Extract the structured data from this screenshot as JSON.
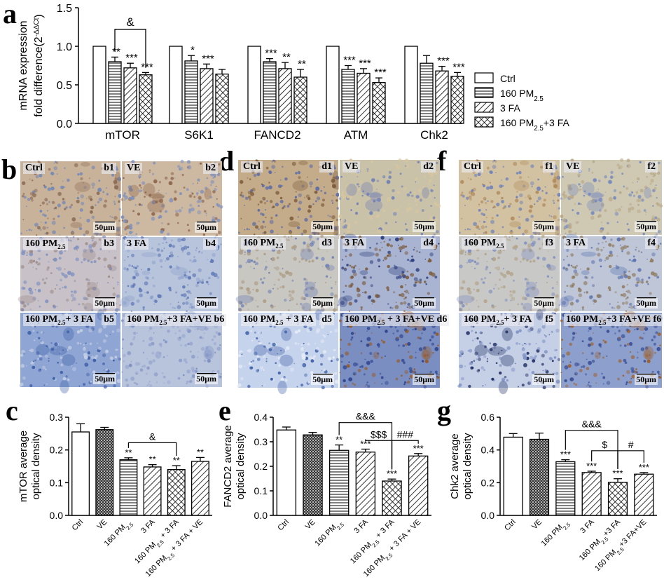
{
  "panels": {
    "a": "a",
    "b": "b",
    "c": "c",
    "d": "d",
    "e": "e",
    "f": "f",
    "g": "g"
  },
  "micro_b": [
    {
      "label": "Ctrl",
      "tag": "b1",
      "scale": "50μm",
      "colors": [
        "#c9b29a",
        "#8a6a55",
        "#6f86b8"
      ]
    },
    {
      "label": "VE",
      "tag": "b2",
      "scale": "50μm",
      "colors": [
        "#cdb8a2",
        "#8d6549",
        "#7b8fbd"
      ]
    },
    {
      "label": "160 PM2.5",
      "tag": "b3",
      "scale": "50μm",
      "colors": [
        "#c8c2c8",
        "#9c8a86",
        "#7f90c0"
      ]
    },
    {
      "label": "3 FA",
      "tag": "b4",
      "scale": "50μm",
      "colors": [
        "#b8c4dc",
        "#8da0cc",
        "#5d77b6"
      ]
    },
    {
      "label": "160 PM2.5+ 3 FA",
      "tag": "b5",
      "scale": "50μm",
      "colors": [
        "#8fa5d3",
        "#3d5ea8",
        "#c5cfe6"
      ]
    },
    {
      "label": "160 PM2.5+3 FA+VE",
      "tag": "b6",
      "scale": "50μm",
      "colors": [
        "#b8c3dc",
        "#7c90c2",
        "#9aa8d0"
      ]
    }
  ],
  "micro_d": [
    {
      "label": "Ctrl",
      "tag": "d1",
      "scale": "50μm",
      "colors": [
        "#c4ac8a",
        "#7d5c3c",
        "#5a6aa6"
      ]
    },
    {
      "label": "VE",
      "tag": "d2",
      "scale": "50μm",
      "colors": [
        "#c9c2a8",
        "#6f7fb8",
        "#d8c6a0"
      ]
    },
    {
      "label": "160 PM2.5",
      "tag": "d3",
      "scale": "50μm",
      "colors": [
        "#c9c7c2",
        "#6b7fb6",
        "#ad9c86"
      ]
    },
    {
      "label": "3 FA",
      "tag": "d4",
      "scale": "50μm",
      "colors": [
        "#a9b4d2",
        "#2b3d7c",
        "#7a5a3a"
      ]
    },
    {
      "label": "160 PM2.5 + 3 FA",
      "tag": "d5",
      "scale": "50μm",
      "colors": [
        "#c6d3ec",
        "#3c5fa8",
        "#e6ecf6"
      ]
    },
    {
      "label": "160 PM2.5 + 3 FA+VE",
      "tag": "d6",
      "scale": "50μm",
      "colors": [
        "#7a8ec2",
        "#9a5a22",
        "#2e4590"
      ]
    }
  ],
  "micro_f": [
    {
      "label": "Ctrl",
      "tag": "f1",
      "scale": "50μm",
      "colors": [
        "#d3c2a2",
        "#b08a5c",
        "#6b80ba"
      ]
    },
    {
      "label": "VE",
      "tag": "f2",
      "scale": "50μm",
      "colors": [
        "#cfc9b4",
        "#7287be",
        "#b8a888"
      ]
    },
    {
      "label": "160 PM2.5",
      "tag": "f3",
      "scale": "50μm",
      "colors": [
        "#c8c8c6",
        "#7b8cc0",
        "#b3a38a"
      ]
    },
    {
      "label": "3 FA",
      "tag": "f4",
      "scale": "50μm",
      "colors": [
        "#bec6d8",
        "#5a70ae",
        "#8e7a5e"
      ]
    },
    {
      "label": "160 PM2.5+ 3 FA",
      "tag": "f5",
      "scale": "50μm",
      "colors": [
        "#c5cfe6",
        "#1f2e62",
        "#8193c6"
      ]
    },
    {
      "label": "160 PM2.5+3 FA+VE",
      "tag": "f6",
      "scale": "50μm",
      "colors": [
        "#8d9fcc",
        "#a0602a",
        "#3a4f95"
      ]
    }
  ],
  "chart_data": [
    {
      "id": "a",
      "type": "bar",
      "ylabel_line1": "mRNA expression",
      "ylabel_line2": "fold difference(2",
      "ylabel_sup": "-ΔΔCt",
      "ylabel_close": ")",
      "ylim": [
        0,
        1.5
      ],
      "yticks": [
        "0.0",
        "0.5",
        "1.0",
        "1.5"
      ],
      "categories": [
        "mTOR",
        "S6K1",
        "FANCD2",
        "ATM",
        "Chk2"
      ],
      "series": [
        {
          "name": "Ctrl",
          "pattern": "white",
          "values": [
            1.0,
            1.0,
            1.0,
            1.0,
            1.0
          ],
          "errors": [
            0,
            0,
            0,
            0,
            0
          ],
          "stars": [
            "",
            "",
            "",
            "",
            ""
          ]
        },
        {
          "name": "160 PM2.5",
          "pattern": "hlines",
          "values": [
            0.8,
            0.81,
            0.8,
            0.7,
            0.78
          ],
          "errors": [
            0.06,
            0.07,
            0.04,
            0.05,
            0.1
          ],
          "stars": [
            "**",
            "*",
            "***",
            "***",
            ""
          ]
        },
        {
          "name": "3 FA",
          "pattern": "diag",
          "values": [
            0.72,
            0.71,
            0.71,
            0.65,
            0.68
          ],
          "errors": [
            0.06,
            0.06,
            0.08,
            0.06,
            0.06
          ],
          "stars": [
            "***",
            "***",
            "**",
            "***",
            "***"
          ]
        },
        {
          "name": "160 PM2.5+3 FA",
          "pattern": "cross",
          "values": [
            0.63,
            0.64,
            0.6,
            0.53,
            0.61
          ],
          "errors": [
            0.03,
            0.06,
            0.1,
            0.06,
            0.05
          ],
          "stars": [
            "***",
            "",
            "**",
            "***",
            "***"
          ]
        }
      ],
      "bracket": {
        "label": "&",
        "from_series": 1,
        "to_series": 3,
        "category": 0
      },
      "legend": [
        "Ctrl",
        "160 PM2.5",
        "3  FA",
        "160 PM2.5+3 FA"
      ]
    },
    {
      "id": "c",
      "type": "bar",
      "ylabel_line1": "mTOR average",
      "ylabel_line2": "optical density",
      "ylim": [
        0,
        0.3
      ],
      "yticks": [
        "0.0",
        "0.1",
        "0.2",
        "0.3"
      ],
      "categories": [
        "Ctrl",
        "VE",
        "160 PM2.5",
        "3  FA",
        "160 PM2.5 + 3 FA",
        "160 PM2.5 + 3 FA + VE"
      ],
      "values": [
        0.255,
        0.262,
        0.17,
        0.148,
        0.14,
        0.165
      ],
      "errors": [
        0.025,
        0.007,
        0.006,
        0.007,
        0.012,
        0.012
      ],
      "patterns": [
        "white",
        "dots",
        "hlines",
        "diag",
        "cross",
        "diag"
      ],
      "stars": [
        "",
        "",
        "**",
        "**",
        "**",
        "**"
      ],
      "brackets": [
        {
          "label": "&",
          "from": 2,
          "to": 4,
          "y": 0.222
        }
      ]
    },
    {
      "id": "e",
      "type": "bar",
      "ylabel_line1": "FANCD2 average",
      "ylabel_line2": "optical density",
      "ylim": [
        0,
        0.4
      ],
      "yticks": [
        "0.0",
        "0.1",
        "0.2",
        "0.3",
        "0.4"
      ],
      "categories": [
        "Ctrl",
        "VE",
        "160 PM2.5",
        "3  FA",
        "160 PM2.5 + 3 FA",
        "160 PM2.5 + 3 FA + VE"
      ],
      "values": [
        0.348,
        0.328,
        0.265,
        0.258,
        0.14,
        0.242
      ],
      "errors": [
        0.012,
        0.01,
        0.022,
        0.012,
        0.008,
        0.01
      ],
      "patterns": [
        "white",
        "dots",
        "hlines",
        "diag",
        "cross",
        "diag"
      ],
      "stars": [
        "",
        "",
        "**",
        "***",
        "***",
        "***"
      ],
      "brackets": [
        {
          "label": "&&&",
          "from": 2,
          "to": 4,
          "y": 0.378
        },
        {
          "label": "$$$",
          "from": 3,
          "to": 4,
          "y": 0.305
        },
        {
          "label": "###",
          "from": 4,
          "to": 5,
          "y": 0.305
        }
      ]
    },
    {
      "id": "g",
      "type": "bar",
      "ylabel_line1": "Chk2 average",
      "ylabel_line2": "optical density",
      "ylim": [
        0,
        0.6
      ],
      "yticks": [
        "0.0",
        "0.2",
        "0.4",
        "0.6"
      ],
      "categories": [
        "Ctrl",
        "VE",
        "160 PM2.5",
        "3  FA",
        "160 PM2.5+3 FA",
        "160 PM2.5+3 FA+VE"
      ],
      "values": [
        0.478,
        0.465,
        0.328,
        0.262,
        0.202,
        0.252
      ],
      "errors": [
        0.022,
        0.038,
        0.012,
        0.008,
        0.022,
        0.01
      ],
      "patterns": [
        "white",
        "dots",
        "hlines",
        "diag",
        "cross",
        "diag"
      ],
      "stars": [
        "",
        "",
        "***",
        "***",
        "***",
        "***"
      ],
      "brackets": [
        {
          "label": "&&&",
          "from": 2,
          "to": 4,
          "y": 0.52
        },
        {
          "label": "$",
          "from": 3,
          "to": 4,
          "y": 0.395
        },
        {
          "label": "#",
          "from": 4,
          "to": 5,
          "y": 0.395
        }
      ]
    }
  ]
}
